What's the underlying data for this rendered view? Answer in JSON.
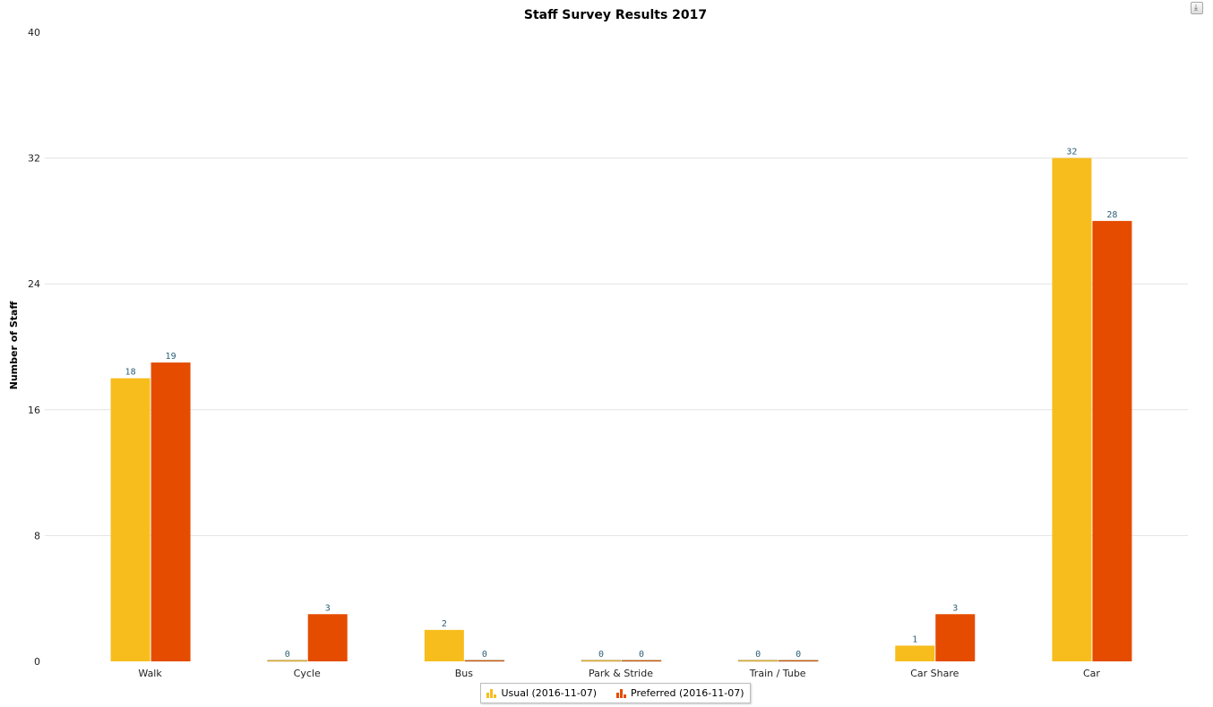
{
  "export_button": {
    "icon": "download-icon"
  },
  "chart_data": {
    "type": "bar",
    "title": "Staff Survey Results 2017",
    "xlabel": "",
    "ylabel": "Number of Staff",
    "ylim": [
      0,
      40
    ],
    "yticks": [
      0,
      8,
      16,
      24,
      32,
      40
    ],
    "grid": true,
    "legend_position": "bottom-center",
    "categories": [
      "Walk",
      "Cycle",
      "Bus",
      "Park & Stride",
      "Train / Tube",
      "Car Share",
      "Car"
    ],
    "series": [
      {
        "name": "Usual (2016-11-07)",
        "color": "#f7bd1d",
        "values": [
          18,
          0,
          2,
          0,
          0,
          1,
          32
        ]
      },
      {
        "name": "Preferred (2016-11-07)",
        "color": "#e54c00",
        "values": [
          19,
          3,
          0,
          0,
          0,
          3,
          28
        ]
      }
    ]
  }
}
